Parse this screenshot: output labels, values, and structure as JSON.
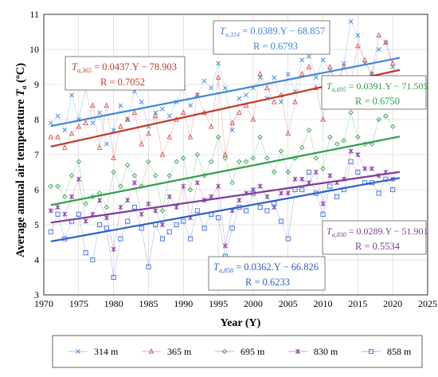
{
  "chart_data": {
    "type": "line",
    "xlabel": "Year (Y)",
    "ylabel_prefix": "Average annual air temperature ",
    "ylabel_var": "T",
    "ylabel_sub": "a",
    "ylabel_unit": " (ºC)",
    "xlim": [
      1970,
      2025
    ],
    "ylim": [
      3,
      11
    ],
    "x_ticks": [
      1970,
      1975,
      1980,
      1985,
      1990,
      1995,
      2000,
      2005,
      2010,
      2015,
      2020,
      2025
    ],
    "y_ticks": [
      3,
      4,
      5,
      6,
      7,
      8,
      9,
      10,
      11
    ],
    "grid": true,
    "legend_position": "bottom",
    "series": [
      {
        "name": "314 m",
        "color": "#4a90d9",
        "marker": "x",
        "fit_color": "#3f86da",
        "fit": {
          "slope": 0.0389,
          "intercept": -68.857,
          "R": 0.6793
        },
        "equation_var": "T",
        "equation_sub": "a,314",
        "equation_rest": " = 0.0389.Y − 68.857",
        "r_label": "R = 0.6793",
        "x": [
          1971,
          1972,
          1973,
          1974,
          1975,
          1976,
          1977,
          1978,
          1979,
          1980,
          1981,
          1982,
          1983,
          1984,
          1985,
          1986,
          1987,
          1988,
          1989,
          1990,
          1991,
          1992,
          1993,
          1994,
          1995,
          1996,
          1997,
          1998,
          1999,
          2000,
          2001,
          2002,
          2003,
          2004,
          2005,
          2006,
          2007,
          2008,
          2009,
          2010,
          2011,
          2012,
          2013,
          2014,
          2015,
          2016,
          2017,
          2018,
          2019,
          2020
        ],
        "values": [
          7.9,
          8.1,
          7.7,
          8.7,
          8.0,
          8.9,
          7.9,
          8.2,
          7.3,
          7.7,
          8.4,
          8.0,
          8.8,
          8.5,
          7.8,
          8.2,
          8.3,
          8.1,
          8.5,
          8.9,
          8.4,
          8.7,
          9.1,
          8.9,
          9.6,
          8.9,
          7.7,
          8.6,
          8.7,
          8.9,
          9.2,
          8.6,
          9.2,
          8.5,
          9.3,
          8.8,
          9.7,
          9.8,
          9.2,
          9.7,
          9.4,
          9.0,
          9.6,
          10.8,
          10.4,
          9.6,
          9.3,
          10.0,
          10.2,
          9.5
        ]
      },
      {
        "name": "365 m",
        "color": "#d9534f",
        "marker": "triangle",
        "fit_color": "#c0392b",
        "fit": {
          "slope": 0.0437,
          "intercept": -78.903,
          "R": 0.7052
        },
        "equation_var": "T",
        "equation_sub": "a,365",
        "equation_rest": " = 0.0437.Y − 78.903",
        "r_label": "R = 0.7052",
        "x": [
          1971,
          1972,
          1973,
          1974,
          1975,
          1976,
          1977,
          1978,
          1979,
          1980,
          1981,
          1982,
          1983,
          1984,
          1985,
          1986,
          1987,
          1988,
          1989,
          1990,
          1991,
          1992,
          1993,
          1994,
          1995,
          1996,
          1997,
          1998,
          1999,
          2000,
          2001,
          2002,
          2003,
          2004,
          2005,
          2006,
          2007,
          2008,
          2009,
          2010,
          2011,
          2012,
          2013,
          2014,
          2015,
          2016,
          2017,
          2018,
          2019,
          2020
        ],
        "values": [
          7.5,
          7.5,
          7.2,
          7.6,
          7.8,
          7.9,
          8.4,
          7.2,
          8.4,
          6.9,
          7.8,
          8.0,
          8.2,
          7.3,
          7.6,
          8.1,
          7.0,
          7.5,
          8.0,
          8.2,
          7.5,
          8.7,
          8.2,
          7.8,
          9.2,
          7.0,
          7.9,
          8.2,
          8.4,
          8.0,
          9.3,
          8.9,
          8.5,
          8.7,
          7.6,
          8.5,
          9.3,
          9.5,
          8.9,
          8.0,
          9.5,
          9.0,
          9.5,
          9.1,
          10.1,
          9.7,
          9.3,
          10.4,
          10.2,
          9.6
        ]
      },
      {
        "name": "695 m",
        "color": "#3aa655",
        "marker": "diamond",
        "fit_color": "#2e9e4a",
        "fit": {
          "slope": 0.0391,
          "intercept": -71.505,
          "R": 0.675
        },
        "equation_var": "T",
        "equation_sub": "a,695",
        "equation_rest": " = 0.0391.Y − 71.505",
        "r_label": "R = 0.6750",
        "x": [
          1971,
          1972,
          1973,
          1974,
          1975,
          1976,
          1977,
          1978,
          1979,
          1980,
          1981,
          1982,
          1983,
          1984,
          1985,
          1986,
          1987,
          1988,
          1989,
          1990,
          1991,
          1992,
          1993,
          1994,
          1995,
          1996,
          1997,
          1998,
          1999,
          2000,
          2001,
          2002,
          2003,
          2004,
          2005,
          2006,
          2007,
          2008,
          2009,
          2010,
          2011,
          2012,
          2013,
          2014,
          2015,
          2016,
          2017,
          2018,
          2019,
          2020
        ],
        "values": [
          6.1,
          6.1,
          5.8,
          6.4,
          6.8,
          5.6,
          5.8,
          5.9,
          5.5,
          6.5,
          6.1,
          6.7,
          6.4,
          6.1,
          6.8,
          6.4,
          5.4,
          6.4,
          6.8,
          6.9,
          6.0,
          7.0,
          6.4,
          6.8,
          7.5,
          6.9,
          6.2,
          6.8,
          6.8,
          6.9,
          7.5,
          6.9,
          6.5,
          7.1,
          6.5,
          6.9,
          7.2,
          7.7,
          6.9,
          6.6,
          7.5,
          7.3,
          7.4,
          8.2,
          7.5,
          7.3,
          7.3,
          8.0,
          8.1,
          7.8
        ]
      },
      {
        "name": "830 m",
        "color": "#8e44ad",
        "marker": "star",
        "fit_color": "#7d3c98",
        "fit": {
          "slope": 0.0289,
          "intercept": -51.901,
          "R": 0.5534
        },
        "equation_var": "T",
        "equation_sub": "a,830",
        "equation_rest": " = 0.0289.Y − 51.901",
        "r_label": "R = 0.5534",
        "x": [
          1971,
          1972,
          1973,
          1974,
          1975,
          1976,
          1977,
          1978,
          1979,
          1980,
          1981,
          1982,
          1983,
          1984,
          1985,
          1986,
          1987,
          1988,
          1989,
          1990,
          1991,
          1992,
          1993,
          1994,
          1995,
          1996,
          1997,
          1998,
          1999,
          2000,
          2001,
          2002,
          2003,
          2004,
          2005,
          2006,
          2007,
          2008,
          2009,
          2010,
          2011,
          2012,
          2013,
          2014,
          2015,
          2016,
          2017,
          2018,
          2019,
          2020
        ],
        "values": [
          5.4,
          5.5,
          5.3,
          5.8,
          6.3,
          5.1,
          5.3,
          5.7,
          5.2,
          4.3,
          5.5,
          5.7,
          6.2,
          5.3,
          5.6,
          5.4,
          5.0,
          5.8,
          5.5,
          6.1,
          5.2,
          6.2,
          5.7,
          5.8,
          6.1,
          4.4,
          5.4,
          5.7,
          5.9,
          6.0,
          6.1,
          5.8,
          5.5,
          5.9,
          5.9,
          6.3,
          6.3,
          6.2,
          6.5,
          5.6,
          6.4,
          6.2,
          6.3,
          7.1,
          7.0,
          6.6,
          6.6,
          6.4,
          6.5,
          6.3
        ]
      },
      {
        "name": "858 m",
        "color": "#3a6fd8",
        "marker": "square",
        "fit_color": "#2a62c9",
        "fit": {
          "slope": 0.0362,
          "intercept": -66.826,
          "R": 0.6233
        },
        "equation_var": "T",
        "equation_sub": "a,858",
        "equation_rest": " = 0.0362.Y − 66.826",
        "r_label": "R = 0.6233",
        "x": [
          1971,
          1972,
          1973,
          1974,
          1975,
          1976,
          1977,
          1978,
          1979,
          1980,
          1981,
          1982,
          1983,
          1984,
          1985,
          1986,
          1987,
          1988,
          1989,
          1990,
          1991,
          1992,
          1993,
          1994,
          1995,
          1996,
          1997,
          1998,
          1999,
          2000,
          2001,
          2002,
          2003,
          2004,
          2005,
          2006,
          2007,
          2008,
          2009,
          2010,
          2011,
          2012,
          2013,
          2014,
          2015,
          2016,
          2017,
          2018,
          2019,
          2020
        ],
        "values": [
          4.8,
          5.3,
          4.6,
          5.1,
          5.3,
          4.2,
          4.0,
          5.0,
          4.9,
          3.5,
          4.6,
          5.1,
          5.5,
          4.9,
          3.8,
          5.0,
          4.6,
          4.8,
          5.0,
          5.1,
          4.6,
          5.4,
          4.9,
          5.3,
          5.2,
          4.1,
          4.9,
          5.5,
          5.4,
          5.9,
          5.5,
          5.4,
          5.6,
          5.1,
          4.6,
          6.0,
          6.0,
          6.5,
          5.9,
          5.3,
          6.1,
          5.8,
          6.0,
          6.8,
          6.5,
          6.2,
          6.2,
          5.9,
          6.3,
          6.0
        ]
      }
    ]
  }
}
